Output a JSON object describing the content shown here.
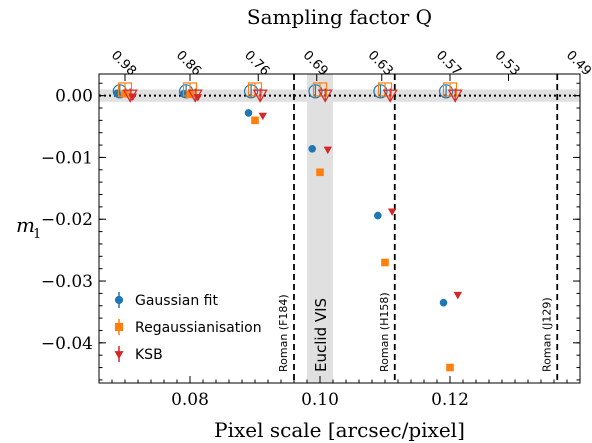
{
  "chart_data": {
    "type": "scatter",
    "xlabel": "Pixel scale [arcsec/pixel]",
    "ylabel": "m",
    "ylabel_subscript": "1",
    "top_xlabel": "Sampling factor Q",
    "xlim": [
      0.066,
      0.14
    ],
    "ylim": [
      -0.0465,
      0.0035
    ],
    "x_ticks": [
      0.08,
      0.1,
      0.12
    ],
    "x_tick_labels": [
      "0.08",
      "0.10",
      "0.12"
    ],
    "y_ticks": [
      0.0,
      -0.01,
      -0.02,
      -0.03,
      -0.04
    ],
    "y_tick_labels": [
      "0.00",
      "−0.01",
      "−0.02",
      "−0.03",
      "−0.04"
    ],
    "top_ticks": [
      {
        "x": 0.07,
        "label": "0.98"
      },
      {
        "x": 0.08,
        "label": "0.86"
      },
      {
        "x": 0.0905,
        "label": "0.76"
      },
      {
        "x": 0.0995,
        "label": "0.69"
      },
      {
        "x": 0.1095,
        "label": "0.63"
      },
      {
        "x": 0.12,
        "label": "0.57"
      },
      {
        "x": 0.129,
        "label": "0.53"
      },
      {
        "x": 0.14,
        "label": "0.49"
      }
    ],
    "legend_position": "bottom-left",
    "series": [
      {
        "name": "Gaussian fit",
        "marker": "circle",
        "color": "#1f77b4",
        "points": [
          {
            "x": 0.0688,
            "y": 0.0004
          },
          {
            "x": 0.079,
            "y": 0.0003
          },
          {
            "x": 0.089,
            "y": -0.0028
          },
          {
            "x": 0.0988,
            "y": -0.0086
          },
          {
            "x": 0.1089,
            "y": -0.0194
          },
          {
            "x": 0.119,
            "y": -0.0335
          }
        ],
        "reference_points": [
          {
            "x": 0.0692,
            "y": 0.0007
          },
          {
            "x": 0.0794,
            "y": 0.0007
          },
          {
            "x": 0.0894,
            "y": 0.0007
          },
          {
            "x": 0.0993,
            "y": 0.0007
          },
          {
            "x": 0.1093,
            "y": 0.0007
          },
          {
            "x": 0.1194,
            "y": 0.0007
          }
        ]
      },
      {
        "name": "Regaussianisation",
        "marker": "square",
        "color": "#ff7f0e",
        "points": [
          {
            "x": 0.07,
            "y": 0.0003
          },
          {
            "x": 0.08,
            "y": 0.0002
          },
          {
            "x": 0.09,
            "y": -0.004
          },
          {
            "x": 0.1,
            "y": -0.0124
          },
          {
            "x": 0.11,
            "y": -0.027
          },
          {
            "x": 0.12,
            "y": -0.044
          }
        ],
        "reference_points": [
          {
            "x": 0.07,
            "y": 0.001
          },
          {
            "x": 0.08,
            "y": 0.001
          },
          {
            "x": 0.09,
            "y": 0.001
          },
          {
            "x": 0.1,
            "y": 0.001
          },
          {
            "x": 0.11,
            "y": 0.001
          },
          {
            "x": 0.12,
            "y": 0.001
          }
        ]
      },
      {
        "name": "KSB",
        "marker": "triangle-down",
        "color": "#d62728",
        "points": [
          {
            "x": 0.0712,
            "y": -0.0001
          },
          {
            "x": 0.0812,
            "y": -0.0002
          },
          {
            "x": 0.0912,
            "y": -0.0032
          },
          {
            "x": 0.1012,
            "y": -0.0087
          },
          {
            "x": 0.1111,
            "y": -0.0187
          },
          {
            "x": 0.1212,
            "y": -0.0322
          }
        ],
        "reference_points": [
          {
            "x": 0.0708,
            "y": 0.0002
          },
          {
            "x": 0.0808,
            "y": 0.0002
          },
          {
            "x": 0.0908,
            "y": 0.0002
          },
          {
            "x": 0.1008,
            "y": 0.0002
          },
          {
            "x": 0.1108,
            "y": 0.0002
          },
          {
            "x": 0.1208,
            "y": 0.0002
          }
        ]
      }
    ],
    "hband": {
      "y0": -0.001,
      "y1": 0.001,
      "color": "#e0e0e0"
    },
    "zero_line": {
      "y": 0.0
    },
    "vband": {
      "x0": 0.098,
      "x1": 0.102,
      "color": "#e0e0e0",
      "label": "Euclid VIS"
    },
    "vlines": [
      {
        "x": 0.096,
        "label": "Roman (F184)"
      },
      {
        "x": 0.1115,
        "label": "Roman (H158)"
      },
      {
        "x": 0.1365,
        "label": "Roman (J129)"
      }
    ]
  }
}
